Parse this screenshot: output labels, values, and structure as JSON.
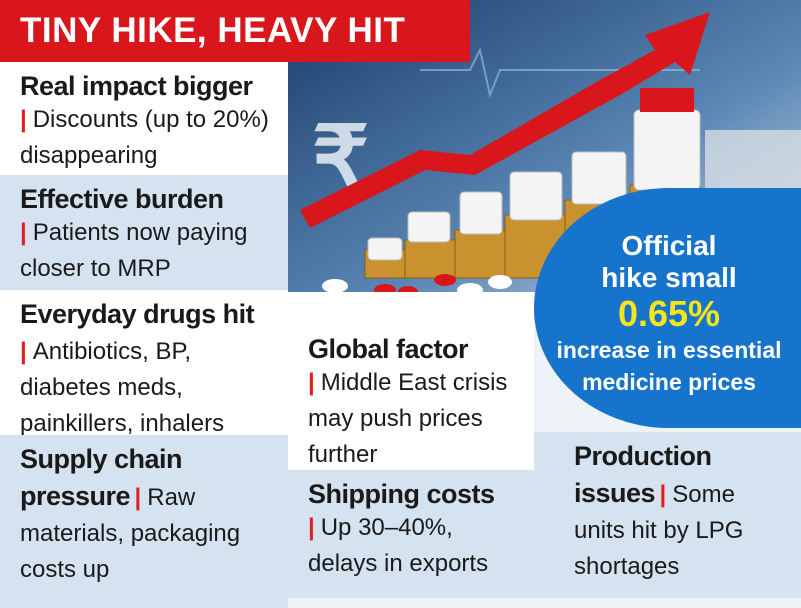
{
  "title": "TINY HIKE, HEAVY HIT",
  "panels": [
    {
      "heading": "Real impact bigger",
      "body": "Discounts (up to 20%) disappearing"
    },
    {
      "heading": "Effective burden",
      "body": "Patients now paying closer to MRP"
    },
    {
      "heading": "Everyday drugs hit",
      "body": "Antibiotics, BP, diabetes meds, painkillers, inhalers"
    },
    {
      "heading": "Supply chain pressure",
      "body": "Raw materials, packaging costs up"
    },
    {
      "heading": "Global factor",
      "body": "Middle East crisis may push prices further"
    },
    {
      "heading": "Shipping costs",
      "body": "Up 30–40%, delays in exports"
    },
    {
      "heading": "Production issues",
      "body": "Some units hit by LPG shortages"
    }
  ],
  "callout": {
    "line1": "Official",
    "line2": "hike small",
    "figure": "0.65%",
    "line3": "increase in essential",
    "line4": "medicine prices"
  }
}
